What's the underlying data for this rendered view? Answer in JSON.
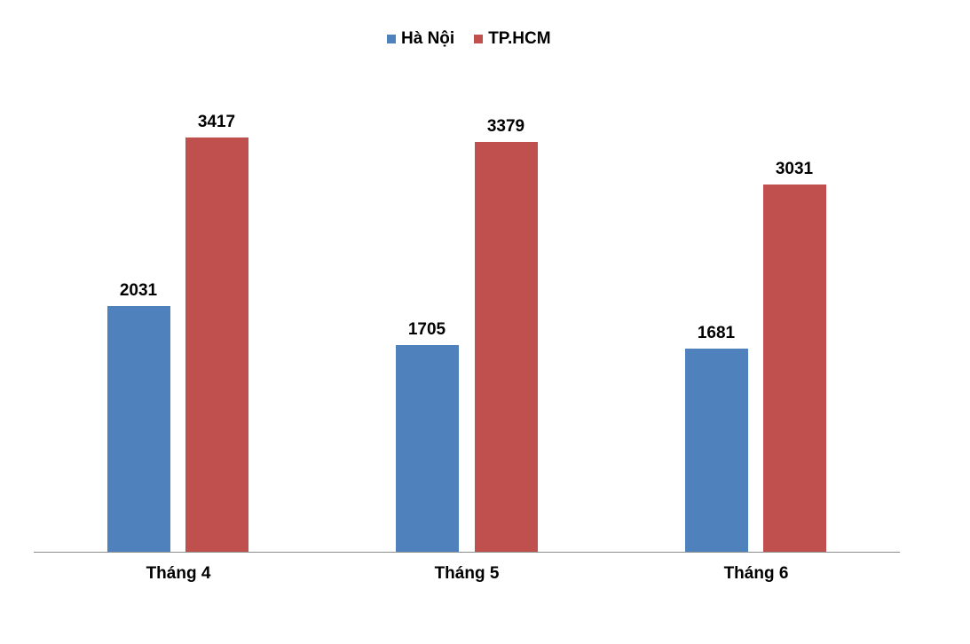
{
  "chart_data": {
    "type": "bar",
    "title": "",
    "xlabel": "",
    "ylabel": "",
    "categories": [
      "Tháng 4",
      "Tháng 5",
      "Tháng 6"
    ],
    "series": [
      {
        "name": "Hà Nội",
        "color": "#4f81bd",
        "values": [
          2031,
          1705,
          1681
        ]
      },
      {
        "name": "TP.HCM",
        "color": "#c0504d",
        "values": [
          3417,
          3379,
          3031
        ]
      }
    ],
    "ylim": [
      0,
      3417
    ],
    "grid": false,
    "legend_position": "top",
    "data_labels": true
  },
  "legend": {
    "items": [
      {
        "label": "Hà Nội",
        "color": "#4f81bd"
      },
      {
        "label": "TP.HCM",
        "color": "#c0504d"
      }
    ]
  },
  "labels": {
    "hn": [
      "2031",
      "1705",
      "1681"
    ],
    "hcm": [
      "3417",
      "3379",
      "3031"
    ]
  }
}
